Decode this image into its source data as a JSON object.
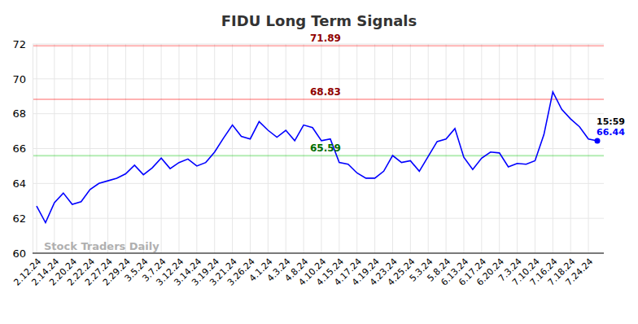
{
  "chart_data": {
    "type": "line",
    "title": "FIDU Long Term Signals",
    "categories": [
      "2.12.24",
      null,
      "2.14.24",
      null,
      "2.20.24",
      null,
      "2.22.24",
      null,
      "2.27.24",
      null,
      "2.29.24",
      null,
      "3.5.24",
      null,
      "3.7.24",
      null,
      "3.12.24",
      null,
      "3.14.24",
      null,
      "3.19.24",
      null,
      "3.21.24",
      null,
      "3.26.24",
      null,
      "4.1.24",
      null,
      "4.3.24",
      null,
      "4.8.24",
      null,
      "4.10.24",
      null,
      "4.15.24",
      null,
      "4.17.24",
      null,
      "4.19.24",
      null,
      "4.23.24",
      null,
      "4.25.24",
      null,
      "5.3.24",
      null,
      "5.8.24",
      null,
      "6.13.24",
      null,
      "6.17.24",
      null,
      "6.20.24",
      null,
      "7.3.24",
      null,
      "7.10.24",
      null,
      "7.16.24",
      null,
      "7.18.24",
      null,
      "7.24.24",
      null
    ],
    "values": [
      62.7,
      61.75,
      62.9,
      63.45,
      62.8,
      62.95,
      63.65,
      64.0,
      64.15,
      64.3,
      64.55,
      65.05,
      64.5,
      64.9,
      65.45,
      64.85,
      65.2,
      65.4,
      65.0,
      65.2,
      65.8,
      66.6,
      67.35,
      66.7,
      66.55,
      67.55,
      67.05,
      66.65,
      67.05,
      66.45,
      67.35,
      67.2,
      66.45,
      66.55,
      65.2,
      65.1,
      64.6,
      64.3,
      64.3,
      64.7,
      65.6,
      65.2,
      65.3,
      64.7,
      65.55,
      66.4,
      66.55,
      67.15,
      65.5,
      64.8,
      65.45,
      65.8,
      65.75,
      64.95,
      65.15,
      65.1,
      65.3,
      66.8,
      69.25,
      68.25,
      67.7,
      67.25,
      66.55,
      66.44
    ],
    "color": "#0000ff",
    "ylim": [
      60,
      72
    ],
    "yticks": [
      60,
      62,
      64,
      66,
      68,
      70,
      72
    ],
    "grid": true,
    "lines": [
      {
        "value": 71.89,
        "color": "#ff0000"
      },
      {
        "value": 68.83,
        "color": "#ff0000"
      },
      {
        "value": 65.59,
        "color": "#00c000"
      }
    ],
    "last_label": "15:59",
    "watermark": "Stock Traders Daily"
  }
}
